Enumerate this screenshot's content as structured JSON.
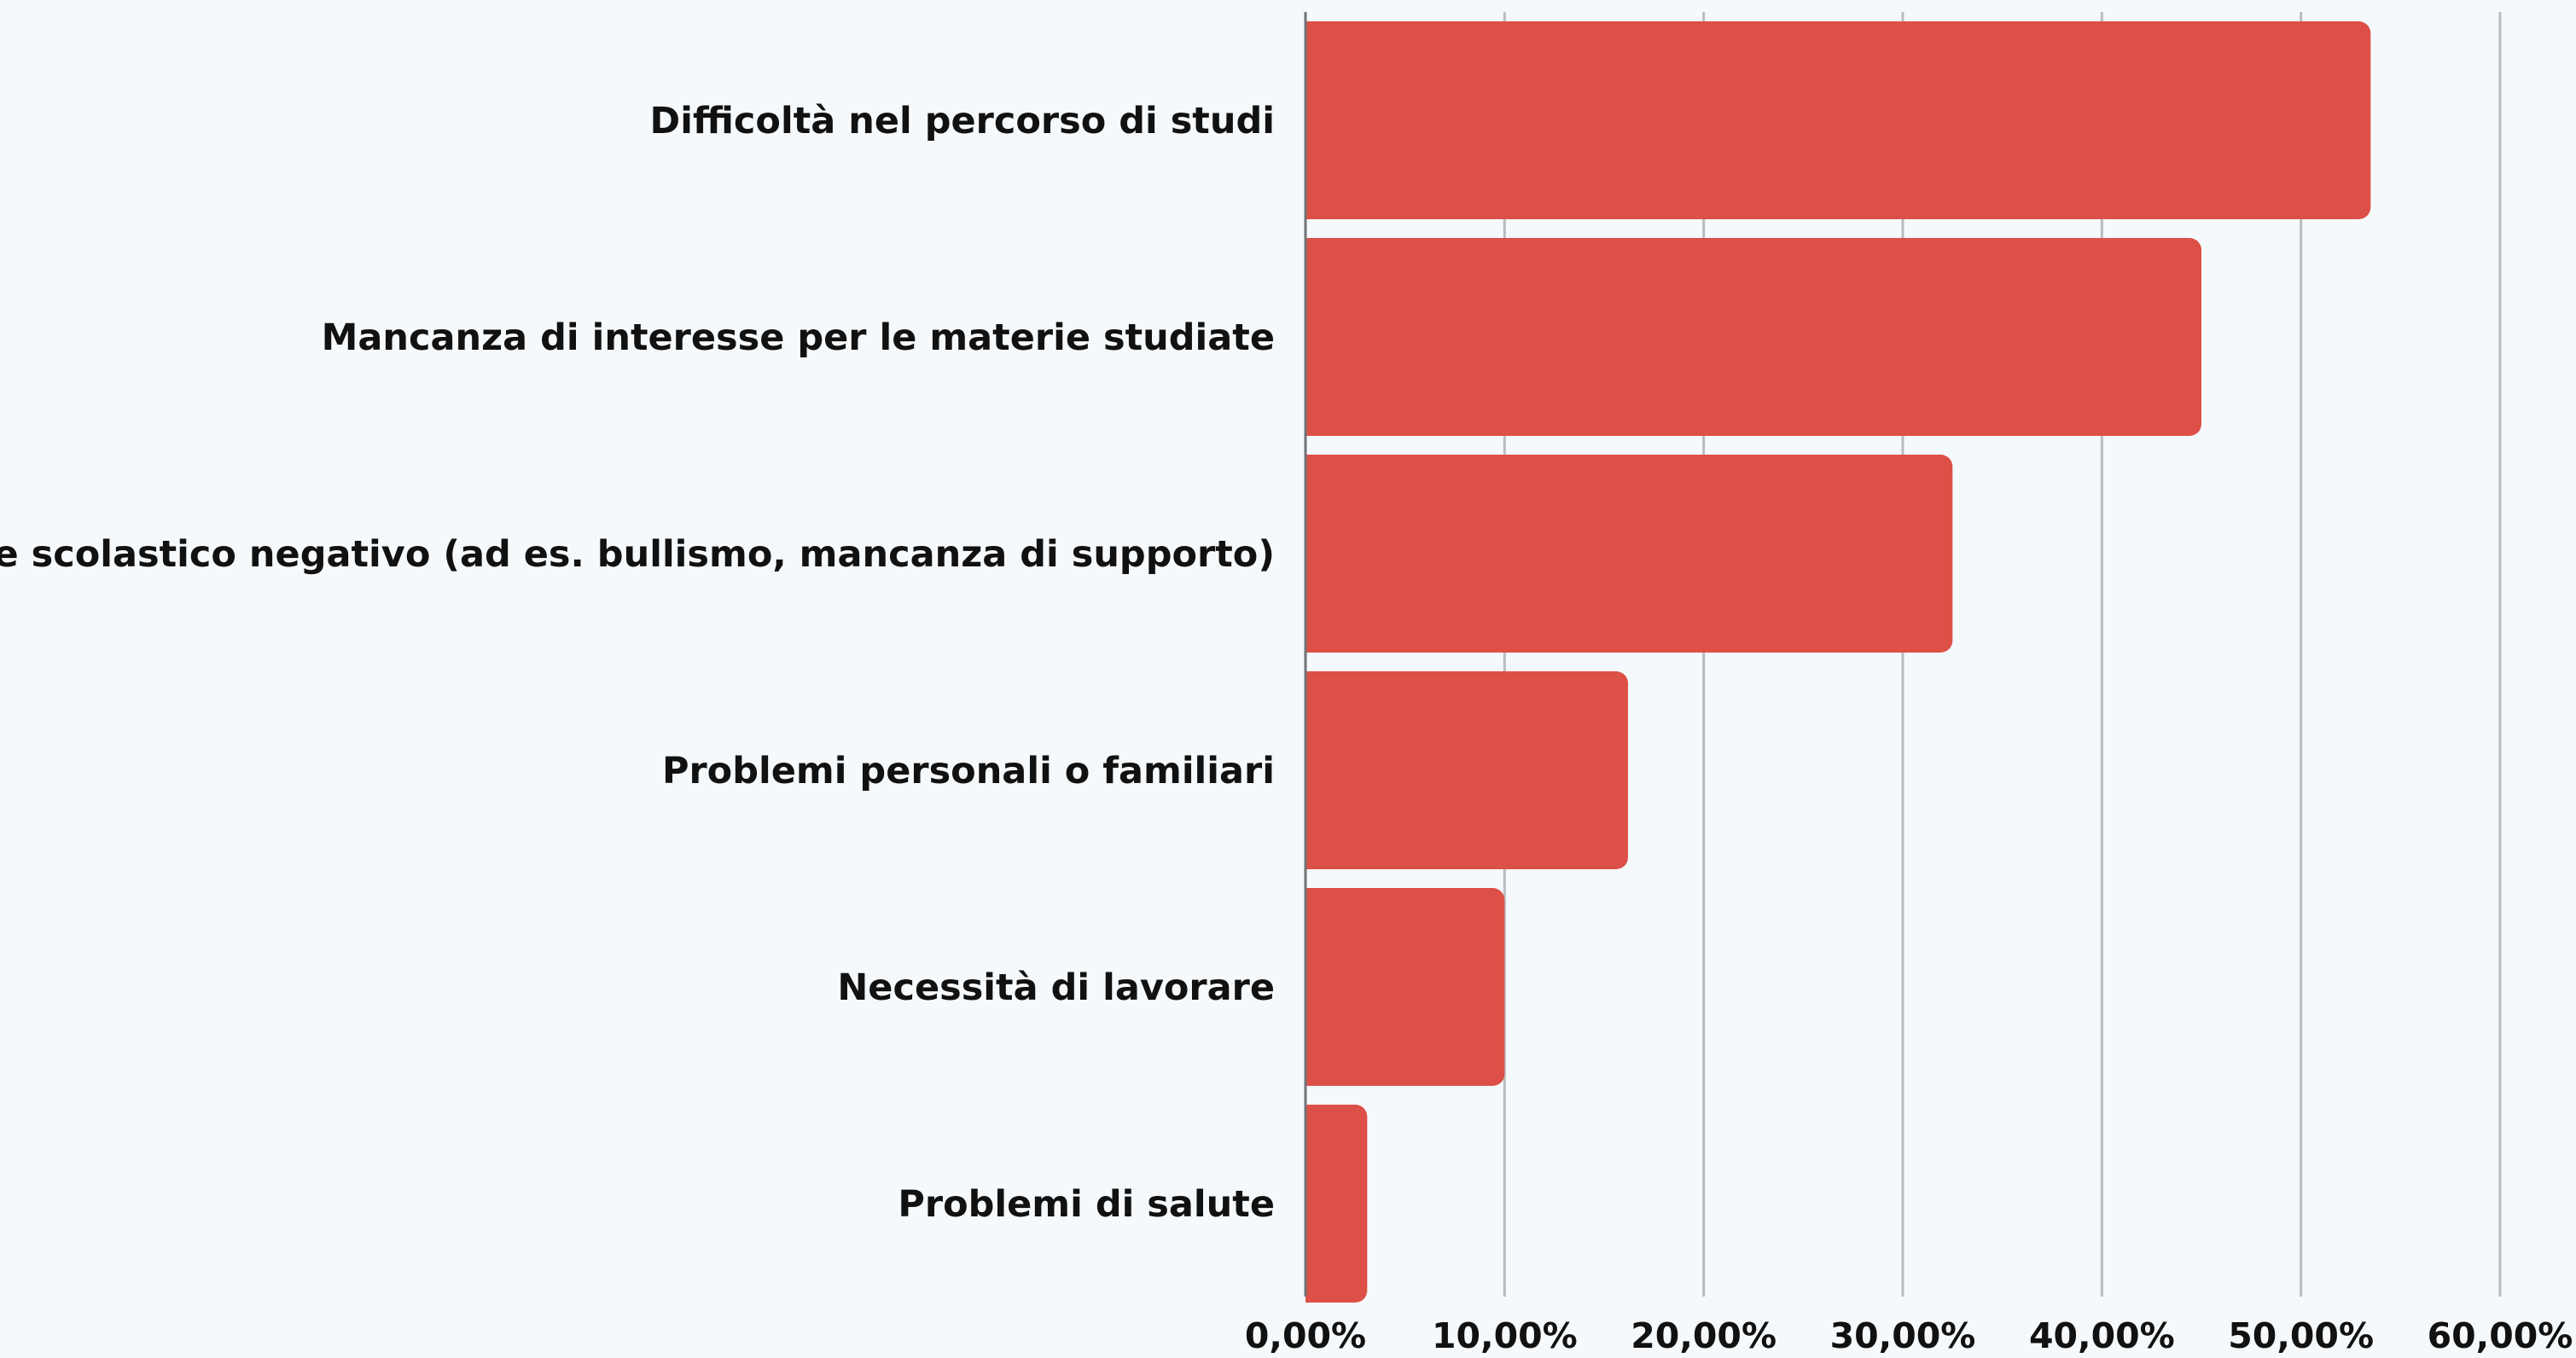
{
  "chart_data": {
    "type": "bar",
    "orientation": "horizontal",
    "categories": [
      "Difficoltà nel percorso di studi",
      "Mancanza di interesse per le materie studiate",
      "Ambiente scolastico negativo (ad es. bullismo, mancanza di supporto)",
      "Problemi personali o familiari",
      "Necessità di lavorare",
      "Problemi di salute"
    ],
    "values": [
      53.5,
      45.0,
      32.5,
      16.2,
      10.0,
      3.1
    ],
    "title": "",
    "xlabel": "",
    "ylabel": "",
    "xlim": [
      0,
      60
    ],
    "x_ticks": [
      0,
      10,
      20,
      30,
      40,
      50,
      60
    ],
    "x_tick_labels": [
      "0,00%",
      "10,00%",
      "20,00%",
      "30,00%",
      "40,00%",
      "50,00%",
      "60,00%"
    ],
    "grid": "vertical",
    "legend": "none",
    "bar_color": "#dd5047",
    "grid_color": "#b9bcbf",
    "background": "#f5f9fc"
  }
}
